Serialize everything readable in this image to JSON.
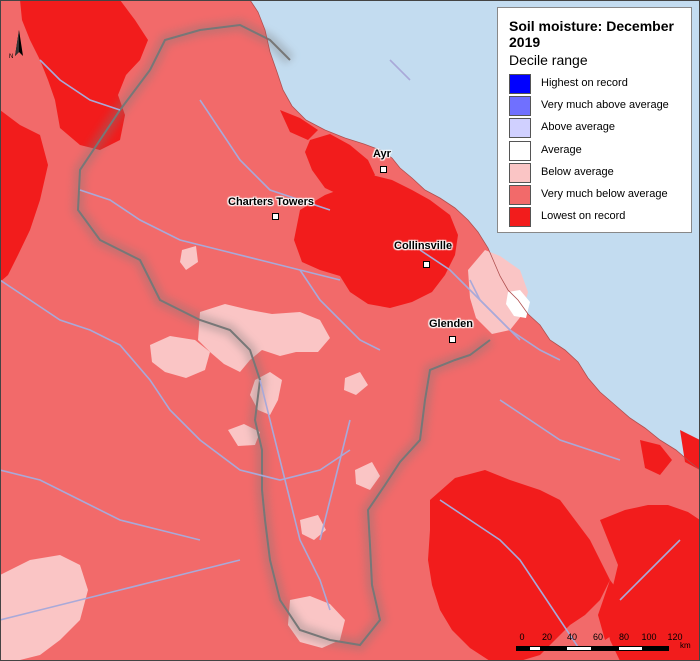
{
  "legend": {
    "title": "Soil moisture: December 2019",
    "subtitle": "Decile range",
    "items": [
      {
        "label": "Highest on record",
        "color": "#0000ff"
      },
      {
        "label": "Very much above average",
        "color": "#7070ff"
      },
      {
        "label": "Above average",
        "color": "#d0d0ff"
      },
      {
        "label": "Average",
        "color": "#ffffff"
      },
      {
        "label": "Below average",
        "color": "#fac5c5"
      },
      {
        "label": "Very much below average",
        "color": "#f26a6a"
      },
      {
        "label": "Lowest on record",
        "color": "#f21c1c"
      }
    ]
  },
  "towns": [
    {
      "name": "Ayr"
    },
    {
      "name": "Charters Towers"
    },
    {
      "name": "Collinsville"
    },
    {
      "name": "Glenden"
    }
  ],
  "north_arrow": {
    "letter": "N"
  },
  "scale_bar": {
    "ticks": [
      "0",
      "20",
      "40",
      "60",
      "80",
      "100",
      "120"
    ],
    "unit": "km"
  },
  "colors": {
    "sea": "#c3dcf0",
    "river": "#a9a9d9",
    "boundary": "#7a7a7a"
  }
}
